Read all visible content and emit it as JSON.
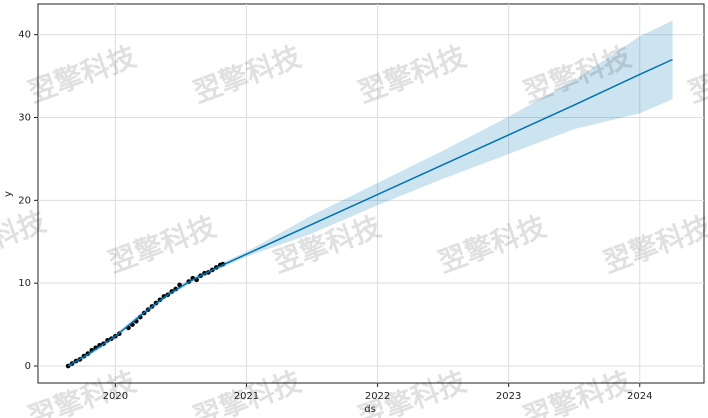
{
  "chart_data": {
    "type": "forecast",
    "xlabel": "ds",
    "ylabel": "y",
    "xlim": [
      2019.41,
      2024.49
    ],
    "ylim": [
      -2.05,
      43.7
    ],
    "xticks": [
      2020,
      2021,
      2022,
      2023,
      2024
    ],
    "yticks": [
      0,
      10,
      20,
      30,
      40
    ],
    "grid": true,
    "watermark": "翌擎科技",
    "observed": {
      "color": "#000000",
      "x": [
        2019.64,
        2019.67,
        2019.7,
        2019.73,
        2019.76,
        2019.79,
        2019.82,
        2019.85,
        2019.88,
        2019.91,
        2019.94,
        2019.97,
        2020.0,
        2020.03,
        2020.1,
        2020.13,
        2020.16,
        2020.19,
        2020.22,
        2020.25,
        2020.28,
        2020.31,
        2020.34,
        2020.37,
        2020.4,
        2020.43,
        2020.46,
        2020.49,
        2020.56,
        2020.59,
        2020.62,
        2020.65,
        2020.68,
        2020.71,
        2020.74,
        2020.77,
        2020.8,
        2020.82
      ],
      "values": [
        0.0,
        0.3,
        0.6,
        0.8,
        1.2,
        1.5,
        1.9,
        2.2,
        2.5,
        2.7,
        3.1,
        3.3,
        3.6,
        3.9,
        4.6,
        5.0,
        5.4,
        5.9,
        6.4,
        6.8,
        7.2,
        7.6,
        8.0,
        8.4,
        8.6,
        9.0,
        9.3,
        9.8,
        10.2,
        10.6,
        10.4,
        10.9,
        11.2,
        11.3,
        11.6,
        11.9,
        12.2,
        12.3
      ]
    },
    "forecast": {
      "color": "#0072B2",
      "x": [
        2019.64,
        2019.8,
        2020.0,
        2020.2,
        2020.4,
        2020.6,
        2020.82,
        2021.0,
        2021.5,
        2022.0,
        2022.5,
        2023.0,
        2023.5,
        2024.0,
        2024.25
      ],
      "values": [
        0.0,
        1.5,
        3.6,
        6.2,
        8.6,
        10.5,
        12.2,
        13.5,
        17.1,
        20.7,
        24.3,
        27.9,
        31.5,
        35.2,
        37.0
      ],
      "lower": [
        -0.3,
        1.2,
        3.3,
        5.9,
        8.3,
        10.2,
        11.9,
        13.2,
        16.0,
        19.4,
        22.6,
        25.6,
        28.6,
        30.5,
        32.2
      ],
      "upper": [
        0.3,
        1.8,
        3.9,
        6.5,
        8.9,
        10.8,
        12.5,
        13.8,
        18.2,
        22.1,
        26.0,
        30.1,
        34.5,
        39.8,
        41.7
      ]
    }
  }
}
